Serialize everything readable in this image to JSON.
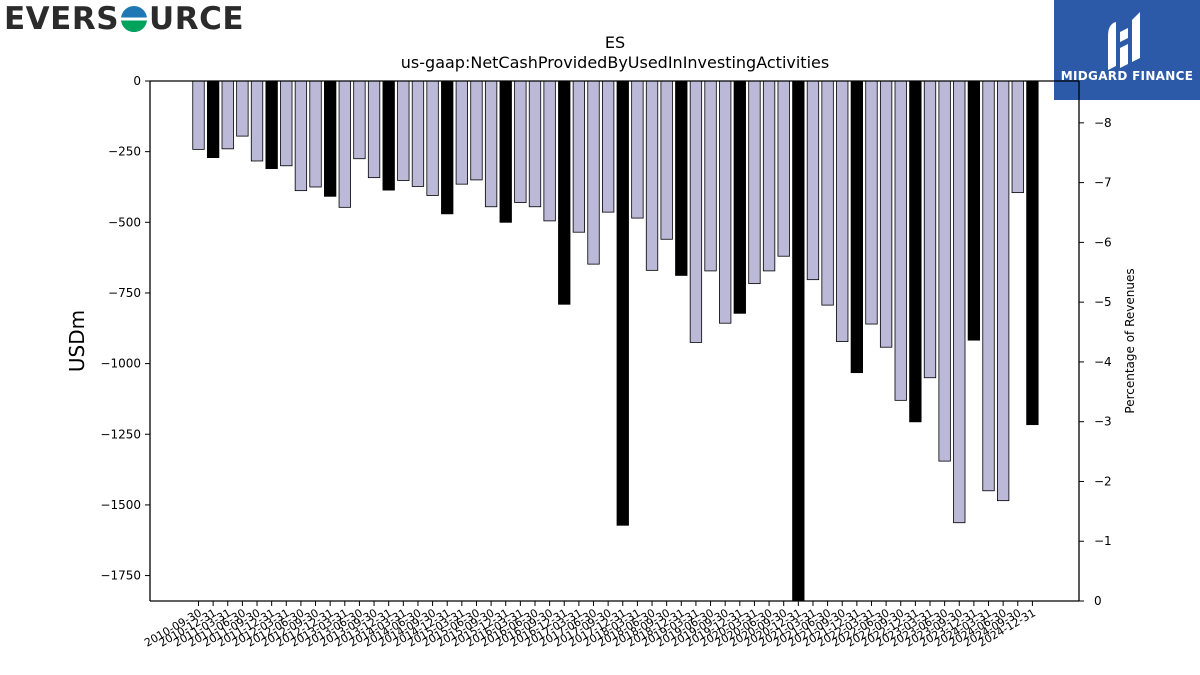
{
  "logos": {
    "left": {
      "part1": "EVERS",
      "part2": "URCE",
      "globe_colors": [
        "#1f77b4",
        "#00a35c"
      ]
    },
    "right": {
      "text": "MIDGARD FINANCE",
      "background": "#2d5aa8"
    }
  },
  "colors": {
    "bar_fill": "#bcb8d8",
    "highlight_fill": "#000000",
    "edge": "#000000"
  },
  "chart_data": {
    "type": "bar",
    "title": "ES",
    "subtitle": "us-gaap:NetCashProvidedByUsedInInvestingActivities",
    "ylabel": "USDm",
    "y2label": "Percentage of Revenues",
    "ylim": [
      -1840,
      0
    ],
    "y2lim": [
      0,
      -8.7
    ],
    "yticks": [
      0,
      -250,
      -500,
      -750,
      -1000,
      -1250,
      -1500,
      -1750
    ],
    "y2ticks": [
      0,
      -1,
      -2,
      -3,
      -4,
      -5,
      -6,
      -7,
      -8
    ],
    "grid": false,
    "categories": [
      "2010-09-30",
      "2010-12-31",
      "2011-03-31",
      "2011-06-30",
      "2011-09-30",
      "2011-12-31",
      "2012-03-31",
      "2012-06-30",
      "2012-09-30",
      "2012-12-31",
      "2013-03-31",
      "2013-06-30",
      "2013-09-30",
      "2013-12-31",
      "2014-03-31",
      "2014-06-30",
      "2014-09-30",
      "2014-12-31",
      "2015-03-31",
      "2015-06-30",
      "2015-09-30",
      "2015-12-31",
      "2016-03-31",
      "2016-06-30",
      "2016-09-30",
      "2016-12-31",
      "2017-03-31",
      "2017-06-30",
      "2017-09-30",
      "2017-12-31",
      "2018-03-31",
      "2018-06-30",
      "2018-09-30",
      "2018-12-31",
      "2019-03-31",
      "2019-06-30",
      "2019-09-30",
      "2019-12-31",
      "2020-03-31",
      "2020-06-30",
      "2020-09-30",
      "2020-12-31",
      "2021-03-31",
      "2021-06-30",
      "2021-09-30",
      "2021-12-31",
      "2022-03-31",
      "2022-06-30",
      "2022-09-30",
      "2022-12-31",
      "2023-03-31",
      "2023-06-30",
      "2023-09-30",
      "2023-12-31",
      "2024-03-31",
      "2024-06-30",
      "2024-09-30",
      "2024-12-31"
    ],
    "values": [
      -242,
      -271,
      -240,
      -195,
      -283,
      -310,
      -300,
      -388,
      -375,
      -408,
      -447,
      -275,
      -342,
      -386,
      -352,
      -373,
      -405,
      -470,
      -365,
      -350,
      -445,
      -500,
      -430,
      -445,
      -495,
      -790,
      -535,
      -648,
      -464,
      -1572,
      -485,
      -670,
      -560,
      -688,
      -925,
      -672,
      -857,
      -822,
      -717,
      -672,
      -620,
      -1840,
      -703,
      -793,
      -922,
      -1032,
      -860,
      -942,
      -1130,
      -1206,
      -1050,
      -1345,
      -1563,
      -917,
      -1450,
      -1485,
      -395,
      -1216
    ],
    "highlight": [
      false,
      true,
      false,
      false,
      false,
      true,
      false,
      false,
      false,
      true,
      false,
      false,
      false,
      true,
      false,
      false,
      false,
      true,
      false,
      false,
      false,
      true,
      false,
      false,
      false,
      true,
      false,
      false,
      false,
      true,
      false,
      false,
      false,
      true,
      false,
      false,
      false,
      true,
      false,
      false,
      false,
      true,
      false,
      false,
      false,
      true,
      false,
      false,
      false,
      true,
      false,
      false,
      false,
      true,
      false,
      false,
      false,
      true
    ]
  }
}
